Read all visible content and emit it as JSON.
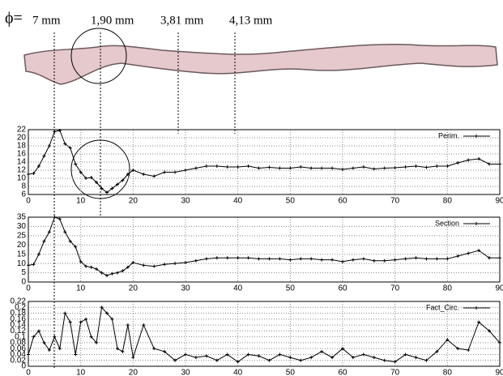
{
  "labels": {
    "phi": "ϕ=",
    "diameters": [
      "7 mm",
      "1,90 mm",
      "3,81 mm",
      "4,13 mm"
    ]
  },
  "chart_data": [
    {
      "type": "line",
      "grid": true,
      "legend": "upper right",
      "x": [
        0,
        1,
        2,
        3,
        4,
        5,
        6,
        7,
        8,
        9,
        10,
        11,
        12,
        13,
        14,
        15,
        16,
        17,
        18,
        19,
        20,
        22,
        24,
        26,
        28,
        30,
        32,
        34,
        36,
        38,
        40,
        42,
        44,
        46,
        48,
        50,
        52,
        54,
        56,
        58,
        60,
        62,
        64,
        66,
        68,
        70,
        72,
        74,
        76,
        78,
        80,
        82,
        84,
        86,
        88,
        90
      ],
      "series": [
        {
          "name": "Perim.",
          "color": "#000000",
          "values": [
            11,
            11.2,
            13,
            15.5,
            18,
            21.5,
            21.8,
            18.5,
            17.5,
            13.5,
            11.5,
            10,
            10.2,
            9,
            7.5,
            6.5,
            7.5,
            8.5,
            9.5,
            11,
            12,
            11,
            10.5,
            11.5,
            11.5,
            12,
            12.5,
            13,
            13,
            12.8,
            12.8,
            13,
            12.5,
            12.7,
            12.5,
            12.5,
            12.8,
            12.5,
            12.5,
            12.5,
            12.2,
            12.5,
            12.8,
            12.3,
            12.5,
            12.6,
            12.8,
            13,
            12.7,
            13,
            13,
            13.8,
            14.5,
            14.8,
            13.5,
            13.5
          ]
        }
      ],
      "xlim": [
        0,
        90
      ],
      "xticks": [
        0,
        10,
        20,
        30,
        40,
        50,
        60,
        70,
        80,
        90
      ],
      "ylim": [
        6,
        22
      ],
      "yticks": [
        6,
        8,
        10,
        12,
        14,
        16,
        18,
        20,
        22
      ]
    },
    {
      "type": "line",
      "grid": true,
      "legend": "upper right",
      "x": [
        0,
        1,
        2,
        3,
        4,
        5,
        6,
        7,
        8,
        9,
        10,
        11,
        12,
        13,
        14,
        15,
        16,
        17,
        18,
        19,
        20,
        22,
        24,
        26,
        28,
        30,
        32,
        34,
        36,
        38,
        40,
        42,
        44,
        46,
        48,
        50,
        52,
        54,
        56,
        58,
        60,
        62,
        64,
        66,
        68,
        70,
        72,
        74,
        76,
        78,
        80,
        82,
        84,
        86,
        88,
        90
      ],
      "series": [
        {
          "name": "Section",
          "color": "#000000",
          "values": [
            9,
            9.5,
            15,
            22,
            27,
            35,
            34,
            27,
            22,
            19,
            11,
            8.5,
            8,
            7,
            5,
            3.5,
            4.5,
            5,
            6,
            8,
            10.5,
            9,
            8.5,
            9.5,
            10,
            10.5,
            11.5,
            12.5,
            13,
            13,
            13,
            13,
            12.5,
            12.5,
            12.5,
            12,
            12.5,
            12.5,
            12,
            12,
            11,
            12,
            12.5,
            11.5,
            11.5,
            12,
            12.5,
            13,
            12.5,
            12.5,
            12.5,
            14,
            15.5,
            17,
            13,
            13
          ]
        }
      ],
      "xlim": [
        0,
        90
      ],
      "xticks": [
        0,
        10,
        20,
        30,
        40,
        50,
        60,
        70,
        80,
        90
      ],
      "ylim": [
        0,
        35
      ],
      "yticks": [
        0,
        5,
        10,
        15,
        20,
        25,
        30,
        35
      ]
    },
    {
      "type": "line",
      "grid": true,
      "legend": "upper right",
      "x": [
        0,
        1,
        2,
        3,
        4,
        5,
        6,
        7,
        8,
        9,
        10,
        11,
        12,
        13,
        14,
        15,
        16,
        17,
        18,
        19,
        20,
        22,
        24,
        26,
        28,
        30,
        32,
        34,
        36,
        38,
        40,
        42,
        44,
        46,
        48,
        50,
        52,
        54,
        56,
        58,
        60,
        62,
        64,
        66,
        68,
        70,
        72,
        74,
        76,
        78,
        80,
        82,
        84,
        86,
        88,
        90
      ],
      "series": [
        {
          "name": "Fact_Circ.",
          "color": "#000000",
          "values": [
            0.04,
            0.1,
            0.12,
            0.08,
            0.055,
            0.1,
            0.06,
            0.18,
            0.15,
            0.04,
            0.15,
            0.16,
            0.1,
            0.08,
            0.2,
            0.18,
            0.16,
            0.06,
            0.05,
            0.14,
            0.03,
            0.14,
            0.06,
            0.05,
            0.02,
            0.04,
            0.03,
            0.035,
            0.02,
            0.04,
            0.015,
            0.04,
            0.035,
            0.02,
            0.04,
            0.03,
            0.02,
            0.03,
            0.05,
            0.03,
            0.06,
            0.03,
            0.04,
            0.03,
            0.02,
            0.015,
            0.04,
            0.03,
            0.02,
            0.05,
            0.09,
            0.06,
            0.055,
            0.15,
            0.12,
            0.08
          ]
        }
      ],
      "xlim": [
        0,
        90
      ],
      "xticks": [
        0,
        10,
        20,
        30,
        40,
        50,
        60,
        70,
        80,
        90
      ],
      "ylim": [
        0,
        0.22
      ],
      "yticks": [
        0,
        0.02,
        0.04,
        0.06,
        0.08,
        0.1,
        0.12,
        0.14,
        0.16,
        0.18,
        0.2,
        0.22
      ]
    }
  ]
}
